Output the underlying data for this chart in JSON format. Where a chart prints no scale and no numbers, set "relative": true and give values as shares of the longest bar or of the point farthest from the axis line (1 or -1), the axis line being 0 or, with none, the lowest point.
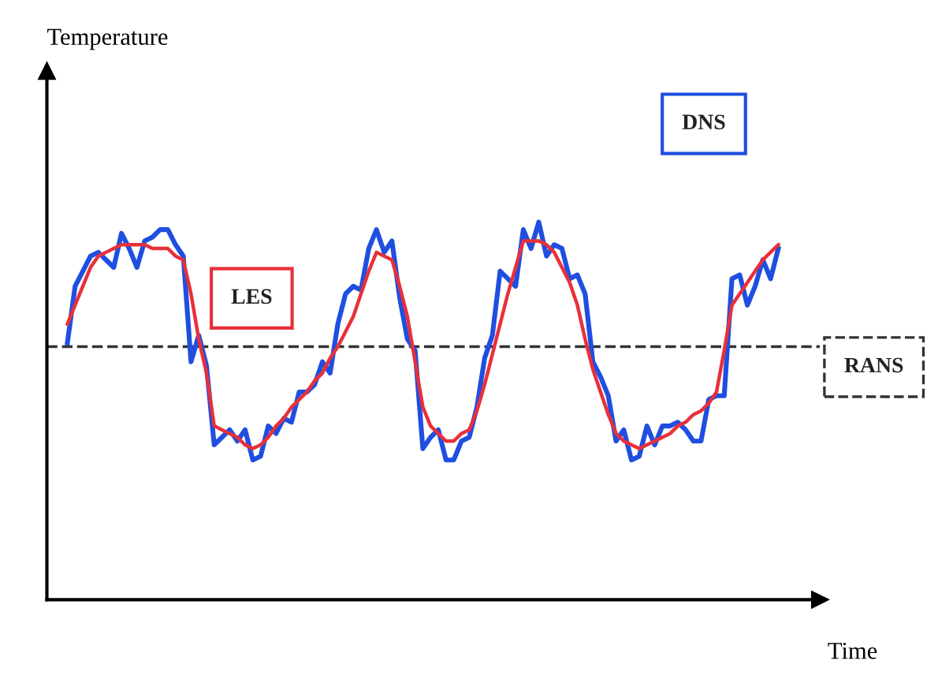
{
  "chart_data": {
    "type": "line",
    "relative": true,
    "xlabel": "Time",
    "annotations": [
      "Temperature"
    ],
    "tick_labels": false,
    "legend": false,
    "marker": "none",
    "categories": [
      null,
      null,
      null,
      null,
      null,
      null,
      null,
      null,
      null,
      null,
      null,
      null,
      null,
      null,
      null,
      null,
      null,
      null,
      null,
      null,
      null,
      null,
      null,
      null,
      null,
      null,
      null,
      null,
      null,
      null,
      null,
      null,
      null,
      null,
      null,
      null,
      null,
      null,
      null,
      null,
      null,
      null,
      null,
      null,
      null,
      null,
      null,
      null,
      null,
      null,
      null,
      null,
      null,
      null,
      null,
      null,
      null,
      null,
      null,
      null,
      null,
      null,
      null,
      null,
      null,
      null,
      null,
      null,
      null,
      null,
      null,
      null,
      null,
      null,
      null,
      null,
      null,
      null,
      null,
      null,
      null,
      null,
      null,
      null,
      null,
      null,
      null,
      null,
      null,
      null,
      null,
      null,
      null
    ],
    "series": [
      {
        "name": "DNS",
        "color": "#1f4fe0",
        "line_style": "solid",
        "values": [
          0.68,
          0.83,
          0.87,
          0.91,
          0.92,
          0.9,
          0.88,
          0.97,
          0.93,
          0.88,
          0.95,
          0.96,
          0.98,
          0.98,
          0.94,
          0.91,
          0.63,
          0.7,
          0.62,
          0.41,
          0.43,
          0.45,
          0.42,
          0.45,
          0.37,
          0.38,
          0.46,
          0.44,
          0.48,
          0.47,
          0.55,
          0.55,
          0.57,
          0.63,
          0.6,
          0.73,
          0.81,
          0.83,
          0.82,
          0.93,
          0.98,
          0.92,
          0.95,
          0.8,
          0.69,
          0.66,
          0.4,
          0.43,
          0.45,
          0.37,
          0.37,
          0.42,
          0.43,
          0.51,
          0.64,
          0.7,
          0.87,
          0.85,
          0.83,
          0.98,
          0.93,
          1,
          0.91,
          0.94,
          0.93,
          0.85,
          0.86,
          0.81,
          0.63,
          0.59,
          0.54,
          0.42,
          0.45,
          0.37,
          0.38,
          0.46,
          0.41,
          0.46,
          0.46,
          0.47,
          0.45,
          0.42,
          0.42,
          0.53,
          0.54,
          0.54,
          0.85,
          0.86,
          0.78,
          0.83,
          0.9,
          0.85,
          0.93
        ]
      },
      {
        "name": "LES",
        "color": "#e8303a",
        "line_style": "solid",
        "values": [
          0.73,
          0.78,
          0.83,
          0.88,
          0.91,
          0.92,
          0.93,
          0.94,
          0.94,
          0.94,
          0.94,
          0.93,
          0.93,
          0.93,
          0.91,
          0.9,
          0.81,
          0.69,
          0.6,
          0.46,
          0.45,
          0.44,
          0.43,
          0.41,
          0.4,
          0.41,
          0.43,
          0.46,
          0.48,
          0.51,
          0.53,
          0.55,
          0.58,
          0.6,
          0.64,
          0.67,
          0.71,
          0.75,
          0.81,
          0.87,
          0.92,
          0.91,
          0.9,
          0.83,
          0.75,
          0.63,
          0.51,
          0.46,
          0.44,
          0.42,
          0.42,
          0.44,
          0.45,
          0.5,
          0.57,
          0.65,
          0.73,
          0.81,
          0.88,
          0.95,
          0.95,
          0.95,
          0.94,
          0.92,
          0.88,
          0.84,
          0.78,
          0.69,
          0.61,
          0.55,
          0.49,
          0.44,
          0.42,
          0.41,
          0.4,
          0.41,
          0.42,
          0.43,
          0.44,
          0.46,
          0.47,
          0.49,
          0.5,
          0.52,
          0.55,
          0.66,
          0.78,
          0.81,
          0.84,
          0.87,
          0.9,
          0.92,
          0.94
        ]
      }
    ],
    "ref_lines": [
      {
        "axis": "y",
        "value": 0.67,
        "label": "RANS",
        "color": "#333333",
        "line_style": "dashed"
      }
    ]
  }
}
